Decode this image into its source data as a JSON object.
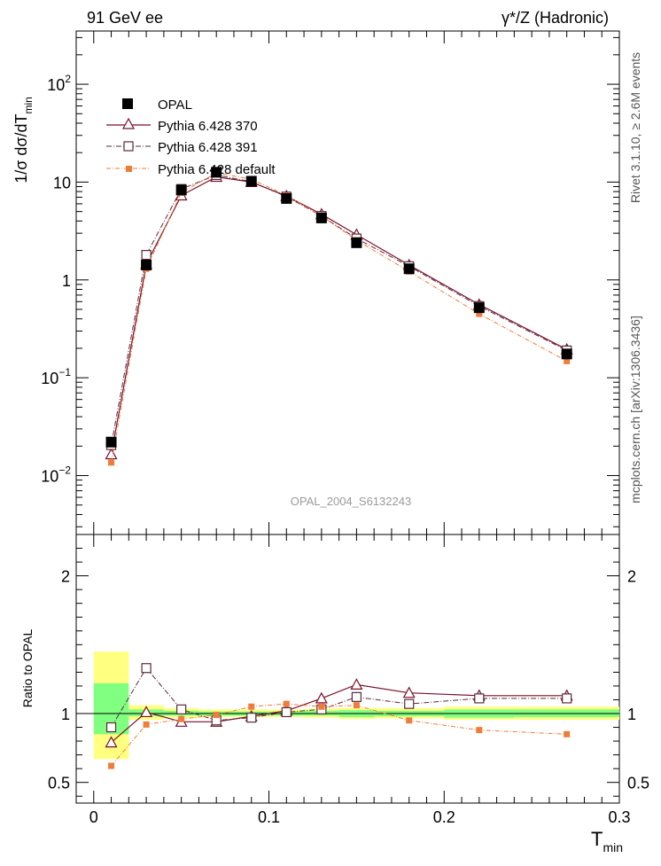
{
  "header": {
    "left": "91 GeV ee",
    "right": "γ*/Z (Hadronic)"
  },
  "side_labels": {
    "rivet": "Rivet 3.1.10, ≥ 2.6M events",
    "mcplots": "mcplots.cern.ch [arXiv:1306.3436]"
  },
  "watermark": "OPAL_2004_S6132243",
  "colors": {
    "data": "#000000",
    "p370": "#7a0f2a",
    "p391": "#5a2a3a",
    "pdefault": "#f07c3a",
    "band_inner": "#80ff80",
    "band_outer": "#ffff80"
  },
  "chart_data": [
    {
      "type": "line",
      "yscale": "log",
      "ylabel_main": "1/σ dσ/dT",
      "ylabel_sub": "min",
      "xlim": [
        -0.01,
        0.3
      ],
      "ylim": [
        0.0025,
        350
      ],
      "x": [
        0.01,
        0.03,
        0.05,
        0.07,
        0.09,
        0.11,
        0.13,
        0.15,
        0.18,
        0.22,
        0.27
      ],
      "yticks": [
        {
          "value": 0.01,
          "base": "10",
          "exp": "−2"
        },
        {
          "value": 0.1,
          "base": "10",
          "exp": "−1"
        },
        {
          "value": 1,
          "base": "1",
          "exp": ""
        },
        {
          "value": 10,
          "base": "10",
          "exp": ""
        },
        {
          "value": 100,
          "base": "10",
          "exp": "2"
        }
      ],
      "series": [
        {
          "name": "OPAL",
          "key": "data",
          "marker": "filled-square",
          "values": [
            0.022,
            1.42,
            8.3,
            12.6,
            10.2,
            6.8,
            4.3,
            2.4,
            1.3,
            0.52,
            0.175
          ]
        },
        {
          "name": "Pythia 6.428 370",
          "key": "p370",
          "marker": "open-triangle",
          "values": [
            0.0165,
            1.45,
            7.3,
            11.3,
            10.0,
            7.2,
            4.7,
            2.9,
            1.42,
            0.56,
            0.195
          ]
        },
        {
          "name": "Pythia 6.428 391",
          "key": "p391",
          "marker": "open-square",
          "values": [
            0.0205,
            1.8,
            8.5,
            11.8,
            10.1,
            7.1,
            4.5,
            2.65,
            1.38,
            0.54,
            0.19
          ]
        },
        {
          "name": "Pythia 6.428 default",
          "key": "pdefault",
          "marker": "small-filled-square",
          "values": [
            0.0136,
            1.3,
            7.8,
            12.4,
            10.7,
            7.3,
            4.5,
            2.55,
            1.22,
            0.45,
            0.148
          ]
        }
      ]
    },
    {
      "type": "line",
      "ylabel": "Ratio to OPAL",
      "xlabel_main": "T",
      "xlabel_sub": "min",
      "xlim": [
        -0.01,
        0.3
      ],
      "ylim": [
        0.35,
        2.3
      ],
      "yticks": [
        0.5,
        1,
        2
      ],
      "xticks": [
        0,
        0.1,
        0.2,
        0.3
      ],
      "xtick_labels": [
        "0",
        "0.1",
        "0.2",
        "0.3"
      ],
      "x": [
        0.01,
        0.03,
        0.05,
        0.07,
        0.09,
        0.11,
        0.13,
        0.15,
        0.18,
        0.22,
        0.27
      ],
      "bands": [
        {
          "x0": 0.0,
          "x1": 0.02,
          "inner": [
            0.85,
            1.22
          ],
          "outer": [
            0.67,
            1.45
          ]
        },
        {
          "x0": 0.02,
          "x1": 0.04,
          "inner": [
            0.98,
            1.03
          ],
          "outer": [
            0.955,
            1.06
          ]
        },
        {
          "x0": 0.04,
          "x1": 0.06,
          "inner": [
            0.985,
            1.02
          ],
          "outer": [
            0.97,
            1.04
          ]
        },
        {
          "x0": 0.06,
          "x1": 0.08,
          "inner": [
            0.985,
            1.015
          ],
          "outer": [
            0.975,
            1.03
          ]
        },
        {
          "x0": 0.08,
          "x1": 0.1,
          "inner": [
            0.985,
            1.015
          ],
          "outer": [
            0.975,
            1.03
          ]
        },
        {
          "x0": 0.1,
          "x1": 0.12,
          "inner": [
            0.985,
            1.015
          ],
          "outer": [
            0.975,
            1.03
          ]
        },
        {
          "x0": 0.12,
          "x1": 0.14,
          "inner": [
            0.985,
            1.02
          ],
          "outer": [
            0.97,
            1.035
          ]
        },
        {
          "x0": 0.14,
          "x1": 0.16,
          "inner": [
            0.975,
            1.025
          ],
          "outer": [
            0.96,
            1.04
          ]
        },
        {
          "x0": 0.16,
          "x1": 0.2,
          "inner": [
            0.98,
            1.02
          ],
          "outer": [
            0.965,
            1.04
          ]
        },
        {
          "x0": 0.2,
          "x1": 0.24,
          "inner": [
            0.97,
            1.03
          ],
          "outer": [
            0.955,
            1.05
          ]
        },
        {
          "x0": 0.24,
          "x1": 0.3,
          "inner": [
            0.975,
            1.03
          ],
          "outer": [
            0.955,
            1.05
          ]
        }
      ],
      "series": [
        {
          "name": "Pythia 6.428 370",
          "key": "p370",
          "marker": "open-triangle",
          "values": [
            0.79,
            1.01,
            0.94,
            0.94,
            0.98,
            1.02,
            1.11,
            1.21,
            1.15,
            1.13,
            1.13
          ]
        },
        {
          "name": "Pythia 6.428 391",
          "key": "p391",
          "marker": "open-square",
          "values": [
            0.9,
            1.33,
            1.03,
            0.95,
            0.97,
            1.01,
            1.03,
            1.12,
            1.07,
            1.11,
            1.11
          ]
        },
        {
          "name": "Pythia 6.428 default",
          "key": "pdefault",
          "marker": "small-filled-square",
          "values": [
            0.62,
            0.92,
            0.96,
            0.99,
            1.05,
            1.07,
            1.05,
            1.06,
            0.95,
            0.88,
            0.85
          ]
        }
      ]
    }
  ]
}
